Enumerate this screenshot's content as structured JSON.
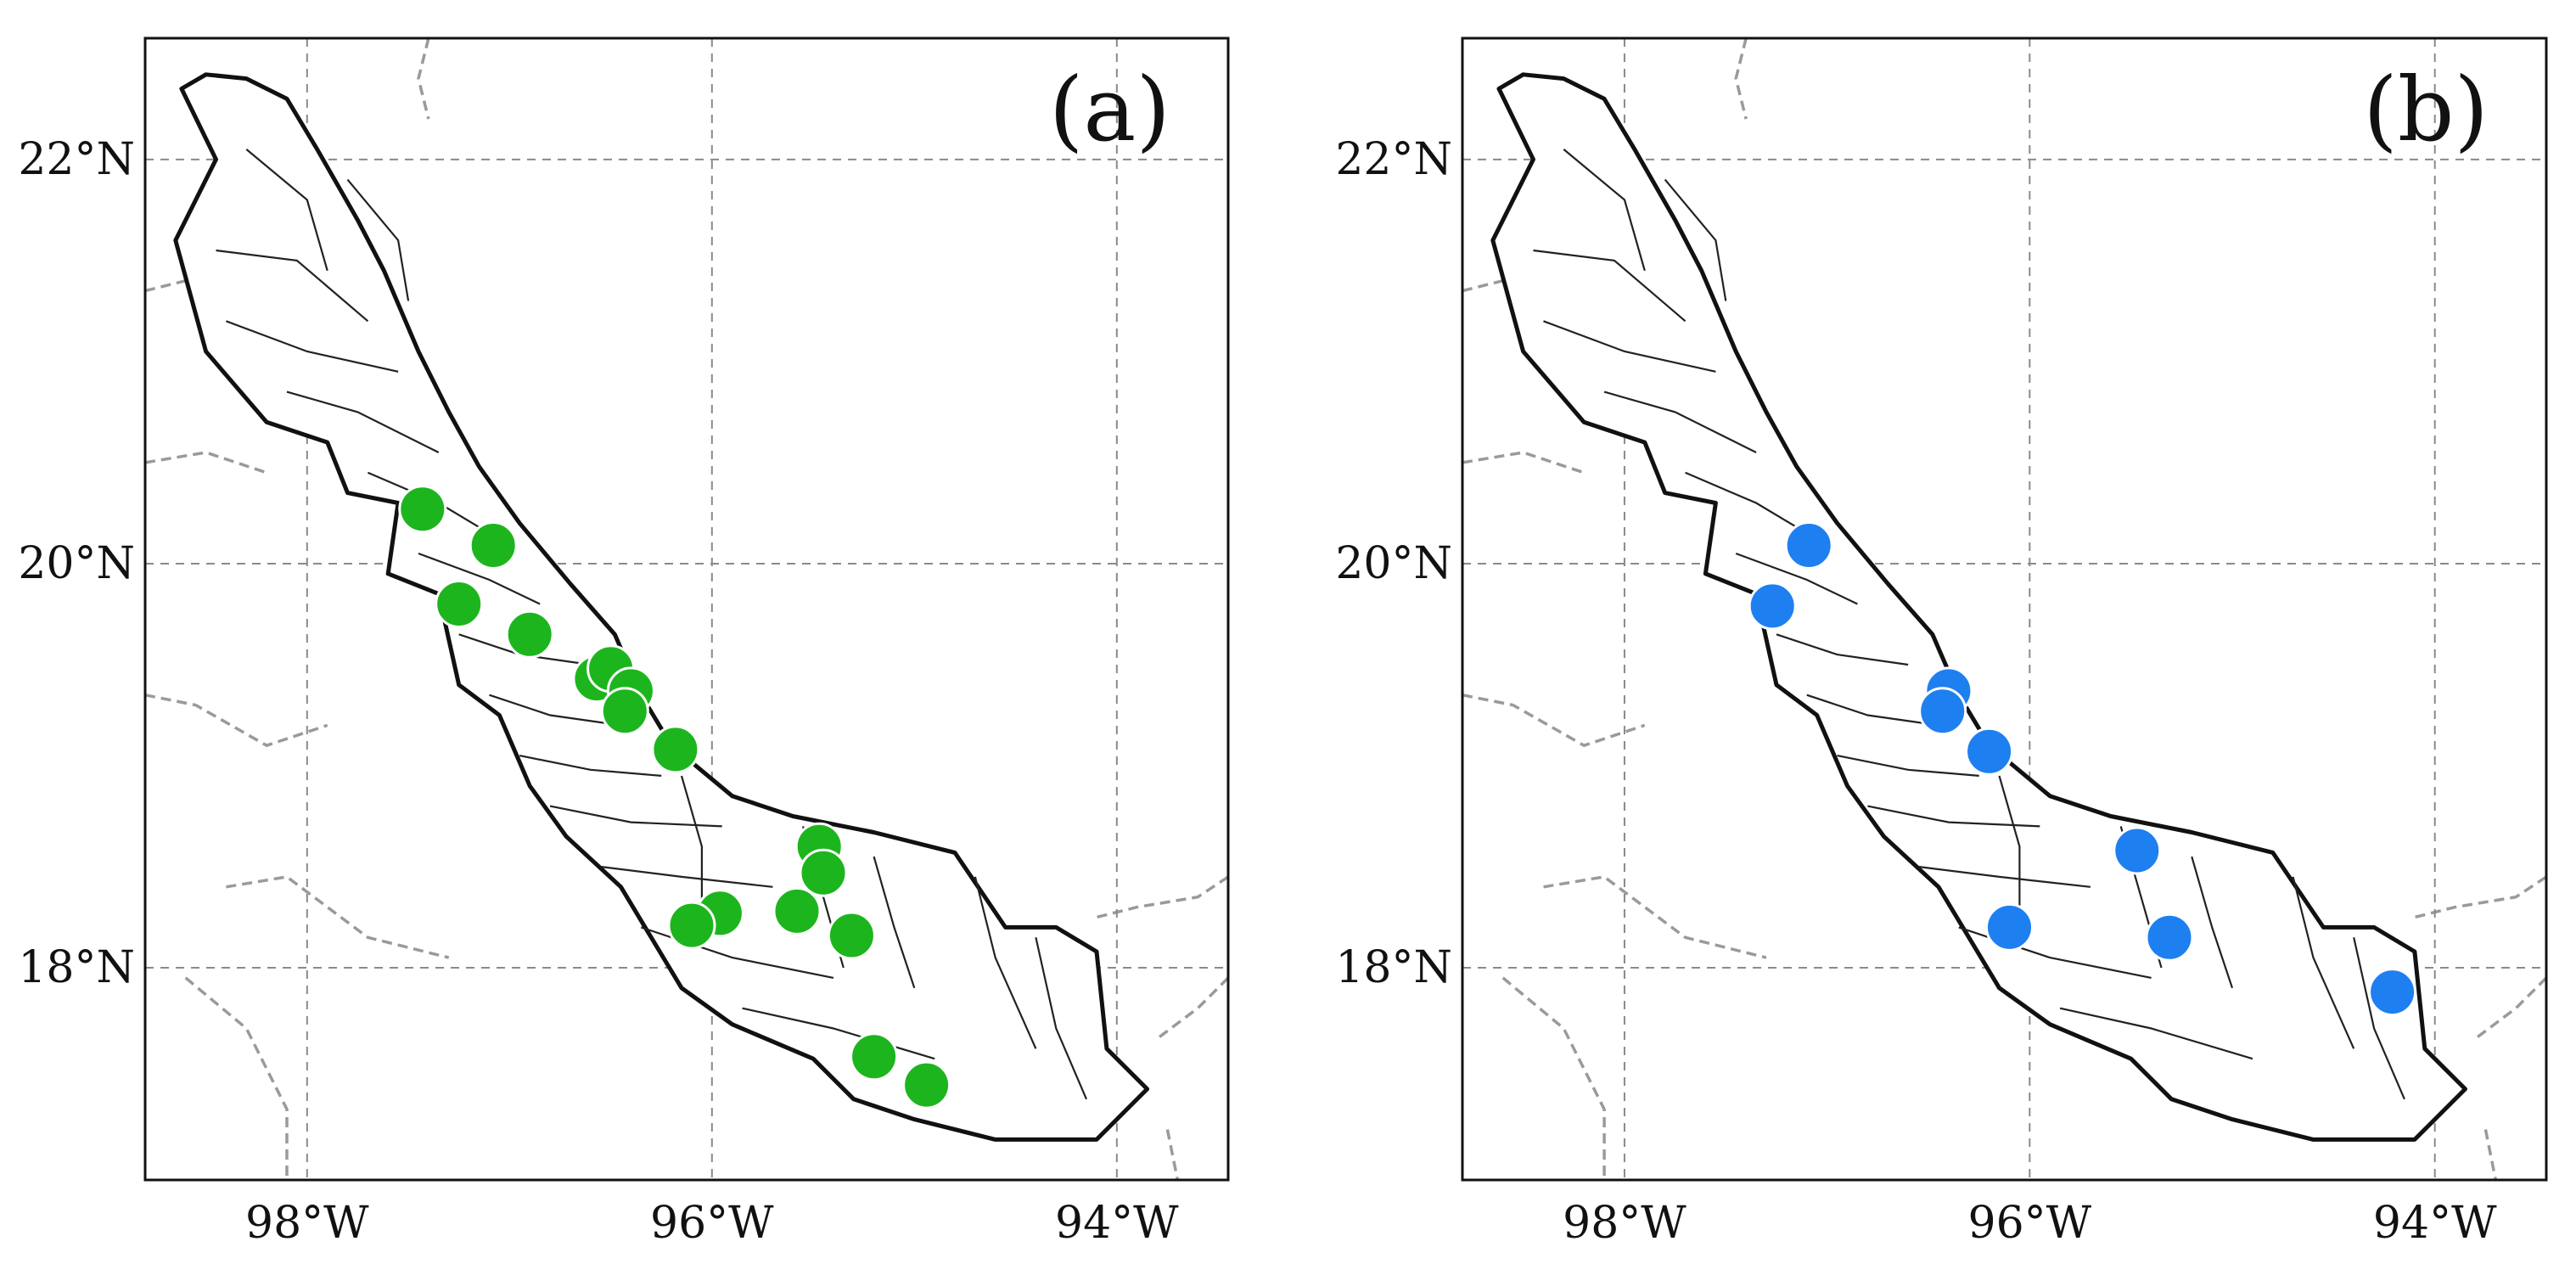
{
  "figure": {
    "panels": [
      {
        "id": "a",
        "label": "(a)",
        "marker_color": "#1db51d",
        "points": [
          {
            "lon": -97.43,
            "lat": 20.27
          },
          {
            "lon": -97.08,
            "lat": 20.09
          },
          {
            "lon": -97.25,
            "lat": 19.8
          },
          {
            "lon": -96.9,
            "lat": 19.65
          },
          {
            "lon": -96.57,
            "lat": 19.43
          },
          {
            "lon": -96.5,
            "lat": 19.48
          },
          {
            "lon": -96.4,
            "lat": 19.37
          },
          {
            "lon": -96.43,
            "lat": 19.27
          },
          {
            "lon": -96.18,
            "lat": 19.08
          },
          {
            "lon": -95.47,
            "lat": 18.6
          },
          {
            "lon": -95.45,
            "lat": 18.47
          },
          {
            "lon": -95.58,
            "lat": 18.28
          },
          {
            "lon": -95.96,
            "lat": 18.27
          },
          {
            "lon": -96.1,
            "lat": 18.21
          },
          {
            "lon": -95.31,
            "lat": 18.16
          },
          {
            "lon": -95.2,
            "lat": 17.56
          },
          {
            "lon": -94.94,
            "lat": 17.42
          }
        ]
      },
      {
        "id": "b",
        "label": "(b)",
        "marker_color": "#1e7ff0",
        "points": [
          {
            "lon": -97.09,
            "lat": 20.09
          },
          {
            "lon": -97.27,
            "lat": 19.79
          },
          {
            "lon": -96.4,
            "lat": 19.37
          },
          {
            "lon": -96.43,
            "lat": 19.27
          },
          {
            "lon": -96.2,
            "lat": 19.07
          },
          {
            "lon": -95.47,
            "lat": 18.58
          },
          {
            "lon": -96.1,
            "lat": 18.2
          },
          {
            "lon": -95.31,
            "lat": 18.15
          },
          {
            "lon": -94.21,
            "lat": 17.88
          }
        ]
      }
    ],
    "axes": {
      "lon_range": [
        -98.8,
        -93.45
      ],
      "lat_range": [
        16.95,
        22.6
      ],
      "lon_ticks": [
        {
          "value": -98,
          "label": "98°W"
        },
        {
          "value": -96,
          "label": "96°W"
        },
        {
          "value": -94,
          "label": "94°W"
        }
      ],
      "lat_ticks": [
        {
          "value": 22,
          "label": "22°N"
        },
        {
          "value": 20,
          "label": "20°N"
        },
        {
          "value": 18,
          "label": "18°N"
        }
      ],
      "gridlines": "dashed"
    },
    "state_outline": [
      [
        -98.62,
        22.35
      ],
      [
        -98.5,
        22.42
      ],
      [
        -98.3,
        22.4
      ],
      [
        -98.1,
        22.3
      ],
      [
        -97.95,
        22.05
      ],
      [
        -97.75,
        21.7
      ],
      [
        -97.62,
        21.45
      ],
      [
        -97.45,
        21.05
      ],
      [
        -97.3,
        20.75
      ],
      [
        -97.15,
        20.48
      ],
      [
        -96.95,
        20.2
      ],
      [
        -96.7,
        19.9
      ],
      [
        -96.48,
        19.65
      ],
      [
        -96.35,
        19.35
      ],
      [
        -96.2,
        19.1
      ],
      [
        -95.9,
        18.85
      ],
      [
        -95.6,
        18.75
      ],
      [
        -95.2,
        18.67
      ],
      [
        -94.8,
        18.57
      ],
      [
        -94.55,
        18.2
      ],
      [
        -94.3,
        18.2
      ],
      [
        -94.1,
        18.08
      ],
      [
        -94.05,
        17.6
      ],
      [
        -93.85,
        17.4
      ],
      [
        -94.1,
        17.15
      ],
      [
        -94.6,
        17.15
      ],
      [
        -95.0,
        17.25
      ],
      [
        -95.3,
        17.35
      ],
      [
        -95.5,
        17.55
      ],
      [
        -95.9,
        17.72
      ],
      [
        -96.15,
        17.9
      ],
      [
        -96.45,
        18.4
      ],
      [
        -96.72,
        18.65
      ],
      [
        -96.9,
        18.9
      ],
      [
        -97.05,
        19.25
      ],
      [
        -97.25,
        19.4
      ],
      [
        -97.35,
        19.85
      ],
      [
        -97.6,
        19.95
      ],
      [
        -97.55,
        20.3
      ],
      [
        -97.8,
        20.35
      ],
      [
        -97.9,
        20.6
      ],
      [
        -98.2,
        20.7
      ],
      [
        -98.5,
        21.05
      ],
      [
        -98.65,
        21.6
      ],
      [
        -98.45,
        22.0
      ],
      [
        -98.62,
        22.35
      ]
    ],
    "interior_lines": [
      [
        [
          -98.3,
          22.05
        ],
        [
          -98.0,
          21.8
        ],
        [
          -97.9,
          21.45
        ]
      ],
      [
        [
          -98.45,
          21.55
        ],
        [
          -98.05,
          21.5
        ],
        [
          -97.7,
          21.2
        ]
      ],
      [
        [
          -98.4,
          21.2
        ],
        [
          -98.0,
          21.05
        ],
        [
          -97.55,
          20.95
        ]
      ],
      [
        [
          -98.1,
          20.85
        ],
        [
          -97.75,
          20.75
        ],
        [
          -97.35,
          20.55
        ]
      ],
      [
        [
          -97.7,
          20.45
        ],
        [
          -97.35,
          20.3
        ],
        [
          -97.1,
          20.15
        ]
      ],
      [
        [
          -97.45,
          20.05
        ],
        [
          -97.1,
          19.92
        ],
        [
          -96.85,
          19.8
        ]
      ],
      [
        [
          -97.25,
          19.65
        ],
        [
          -96.95,
          19.55
        ],
        [
          -96.6,
          19.5
        ]
      ],
      [
        [
          -97.1,
          19.35
        ],
        [
          -96.8,
          19.25
        ],
        [
          -96.45,
          19.2
        ]
      ],
      [
        [
          -96.95,
          19.05
        ],
        [
          -96.6,
          18.98
        ],
        [
          -96.25,
          18.95
        ]
      ],
      [
        [
          -96.8,
          18.8
        ],
        [
          -96.4,
          18.72
        ],
        [
          -95.95,
          18.7
        ]
      ],
      [
        [
          -96.55,
          18.5
        ],
        [
          -96.15,
          18.45
        ],
        [
          -95.7,
          18.4
        ]
      ],
      [
        [
          -96.35,
          18.2
        ],
        [
          -95.9,
          18.05
        ],
        [
          -95.4,
          17.95
        ]
      ],
      [
        [
          -95.85,
          17.8
        ],
        [
          -95.4,
          17.7
        ],
        [
          -94.9,
          17.55
        ]
      ],
      [
        [
          -95.2,
          18.55
        ],
        [
          -95.1,
          18.2
        ],
        [
          -95.0,
          17.9
        ]
      ],
      [
        [
          -94.7,
          18.45
        ],
        [
          -94.6,
          18.05
        ],
        [
          -94.4,
          17.6
        ]
      ],
      [
        [
          -95.55,
          18.7
        ],
        [
          -95.45,
          18.35
        ],
        [
          -95.35,
          18.0
        ]
      ],
      [
        [
          -97.8,
          21.9
        ],
        [
          -97.55,
          21.6
        ],
        [
          -97.5,
          21.3
        ]
      ],
      [
        [
          -96.15,
          18.95
        ],
        [
          -96.05,
          18.6
        ],
        [
          -96.05,
          18.25
        ]
      ],
      [
        [
          -94.4,
          18.15
        ],
        [
          -94.3,
          17.7
        ],
        [
          -94.15,
          17.35
        ]
      ]
    ],
    "neighbor_borders": [
      [
        [
          -98.8,
          21.35
        ],
        [
          -98.6,
          21.4
        ],
        [
          -98.5,
          21.7
        ]
      ],
      [
        [
          -98.8,
          20.5
        ],
        [
          -98.5,
          20.55
        ],
        [
          -98.2,
          20.45
        ]
      ],
      [
        [
          -98.8,
          19.35
        ],
        [
          -98.55,
          19.3
        ],
        [
          -98.2,
          19.1
        ],
        [
          -97.9,
          19.2
        ]
      ],
      [
        [
          -98.4,
          18.4
        ],
        [
          -98.1,
          18.45
        ],
        [
          -97.7,
          18.15
        ],
        [
          -97.3,
          18.05
        ]
      ],
      [
        [
          -98.6,
          17.95
        ],
        [
          -98.3,
          17.7
        ],
        [
          -98.1,
          17.3
        ],
        [
          -98.1,
          16.95
        ]
      ],
      [
        [
          -97.4,
          22.6
        ],
        [
          -97.45,
          22.4
        ],
        [
          -97.4,
          22.2
        ]
      ],
      [
        [
          -93.45,
          18.45
        ],
        [
          -93.6,
          18.35
        ],
        [
          -93.9,
          18.3
        ],
        [
          -94.1,
          18.25
        ]
      ],
      [
        [
          -93.45,
          17.95
        ],
        [
          -93.6,
          17.8
        ],
        [
          -93.8,
          17.65
        ]
      ],
      [
        [
          -93.75,
          17.2
        ],
        [
          -93.7,
          16.95
        ]
      ]
    ]
  }
}
